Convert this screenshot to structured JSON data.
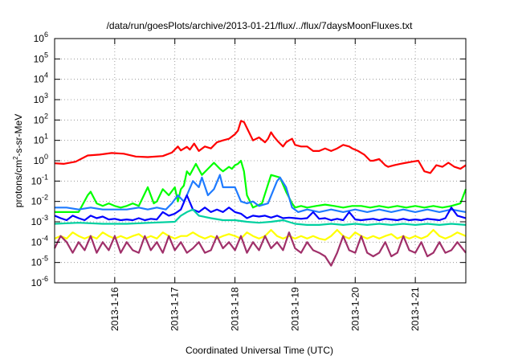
{
  "chart_data": {
    "type": "line",
    "title": "/data/run/goesPlots/archive/2013-01-21/flux/../flux/7daysMoonFluxes.txt",
    "xlabel": "Coordinated Universal Time (UTC)",
    "ylabel_parts": [
      "protons/cm",
      "2",
      "-s-sr-MeV"
    ],
    "y_scale": "log",
    "ylim_exp": [
      -6,
      6
    ],
    "y_tick_exponents": [
      -6,
      -5,
      -4,
      -3,
      -2,
      -1,
      0,
      1,
      2,
      3,
      4,
      5,
      6
    ],
    "x_tick_labels": [
      "2013-1-16",
      "2013-1-17",
      "2013-1-18",
      "2013-1-19",
      "2013-1-20",
      "2013-1-21"
    ],
    "x_tick_days": [
      1,
      2,
      3,
      4,
      5,
      6
    ],
    "xlim_days": [
      0,
      6.84
    ],
    "grid": true,
    "series": [
      {
        "color": "#ff0000",
        "x": [
          0.0,
          0.15,
          0.35,
          0.55,
          0.75,
          0.95,
          1.15,
          1.35,
          1.55,
          1.8,
          1.95,
          2.05,
          2.1,
          2.2,
          2.25,
          2.32,
          2.4,
          2.5,
          2.6,
          2.7,
          2.8,
          2.9,
          3.0,
          3.05,
          3.1,
          3.15,
          3.2,
          3.3,
          3.4,
          3.5,
          3.55,
          3.6,
          3.65,
          3.7,
          3.75,
          3.8,
          3.85,
          3.9,
          3.95,
          4.0,
          4.1,
          4.2,
          4.3,
          4.4,
          4.5,
          4.6,
          4.7,
          4.8,
          4.9,
          4.95,
          5.05,
          5.15,
          5.25,
          5.3,
          5.4,
          5.5,
          5.55,
          5.65,
          5.75,
          5.85,
          5.95,
          6.05,
          6.15,
          6.25,
          6.35,
          6.45,
          6.55,
          6.65,
          6.75,
          6.84
        ],
        "values": [
          0.75,
          0.7,
          0.9,
          1.8,
          2.0,
          2.4,
          2.2,
          1.6,
          1.5,
          1.7,
          2.5,
          5.0,
          3.2,
          4.8,
          3.5,
          7.0,
          3.0,
          5.0,
          4.0,
          8.0,
          10.0,
          12.0,
          20.0,
          30.0,
          90.0,
          80.0,
          40.0,
          10.0,
          14.0,
          8.0,
          12.0,
          25.0,
          15.0,
          10.0,
          7.0,
          5.0,
          8.0,
          10.0,
          12.0,
          6.0,
          5.0,
          5.0,
          3.0,
          3.0,
          4.0,
          3.0,
          4.0,
          6.0,
          5.0,
          4.0,
          3.0,
          2.0,
          1.0,
          1.0,
          1.2,
          0.6,
          0.5,
          0.6,
          0.7,
          0.8,
          0.9,
          1.0,
          0.3,
          0.25,
          0.6,
          0.5,
          0.8,
          0.5,
          0.4,
          0.6
        ]
      },
      {
        "color": "#00ff00",
        "x": [
          0.0,
          0.2,
          0.4,
          0.55,
          0.6,
          0.7,
          0.8,
          0.9,
          1.0,
          1.1,
          1.2,
          1.3,
          1.4,
          1.55,
          1.65,
          1.7,
          1.8,
          1.9,
          2.0,
          2.05,
          2.1,
          2.15,
          2.2,
          2.25,
          2.35,
          2.45,
          2.55,
          2.65,
          2.75,
          2.8,
          2.9,
          2.95,
          3.0,
          3.05,
          3.1,
          3.15,
          3.2,
          3.3,
          3.45,
          3.6,
          3.75,
          3.85,
          3.95,
          4.0,
          4.1,
          4.2,
          4.35,
          4.5,
          4.65,
          4.8,
          4.95,
          5.1,
          5.25,
          5.4,
          5.55,
          5.7,
          5.85,
          6.0,
          6.15,
          6.3,
          6.45,
          6.6,
          6.75,
          6.84
        ],
        "values": [
          0.003,
          0.003,
          0.003,
          0.02,
          0.03,
          0.008,
          0.006,
          0.008,
          0.006,
          0.005,
          0.006,
          0.008,
          0.006,
          0.05,
          0.008,
          0.01,
          0.04,
          0.02,
          0.05,
          0.01,
          0.04,
          0.06,
          0.3,
          0.2,
          0.7,
          0.2,
          0.4,
          0.8,
          0.4,
          0.3,
          0.5,
          0.4,
          0.6,
          0.7,
          1.0,
          0.3,
          0.02,
          0.005,
          0.008,
          0.2,
          0.15,
          0.03,
          0.008,
          0.005,
          0.006,
          0.005,
          0.006,
          0.007,
          0.006,
          0.005,
          0.006,
          0.006,
          0.005,
          0.006,
          0.005,
          0.006,
          0.005,
          0.006,
          0.005,
          0.006,
          0.005,
          0.006,
          0.008,
          0.04
        ]
      },
      {
        "color": "#1f7bff",
        "x": [
          0.0,
          0.2,
          0.4,
          0.6,
          0.8,
          1.0,
          1.2,
          1.4,
          1.55,
          1.7,
          1.85,
          1.95,
          2.05,
          2.15,
          2.2,
          2.3,
          2.4,
          2.45,
          2.55,
          2.65,
          2.75,
          2.8,
          2.9,
          3.0,
          3.1,
          3.2,
          3.3,
          3.4,
          3.55,
          3.7,
          3.75,
          3.85,
          3.95,
          4.05,
          4.2,
          4.4,
          4.6,
          4.8,
          5.0,
          5.2,
          5.4,
          5.6,
          5.8,
          6.0,
          6.2,
          6.4,
          6.6,
          6.84
        ],
        "values": [
          0.005,
          0.005,
          0.004,
          0.005,
          0.004,
          0.004,
          0.004,
          0.005,
          0.004,
          0.005,
          0.004,
          0.008,
          0.02,
          0.01,
          0.02,
          0.1,
          0.05,
          0.15,
          0.02,
          0.04,
          0.2,
          0.05,
          0.05,
          0.05,
          0.01,
          0.008,
          0.01,
          0.006,
          0.008,
          0.1,
          0.15,
          0.05,
          0.005,
          0.003,
          0.004,
          0.003,
          0.004,
          0.003,
          0.004,
          0.003,
          0.004,
          0.003,
          0.004,
          0.003,
          0.004,
          0.003,
          0.004,
          0.003
        ]
      },
      {
        "color": "#0000ff",
        "x": [
          0.0,
          0.1,
          0.2,
          0.3,
          0.4,
          0.5,
          0.6,
          0.7,
          0.8,
          0.9,
          1.0,
          1.1,
          1.2,
          1.3,
          1.4,
          1.5,
          1.6,
          1.7,
          1.8,
          1.9,
          2.0,
          2.1,
          2.2,
          2.3,
          2.4,
          2.5,
          2.6,
          2.7,
          2.8,
          2.9,
          3.0,
          3.1,
          3.2,
          3.3,
          3.4,
          3.5,
          3.6,
          3.7,
          3.8,
          3.9,
          4.0,
          4.1,
          4.2,
          4.3,
          4.4,
          4.5,
          4.6,
          4.7,
          4.8,
          4.9,
          5.0,
          5.1,
          5.2,
          5.3,
          5.4,
          5.5,
          5.6,
          5.7,
          5.8,
          5.9,
          6.0,
          6.1,
          6.2,
          6.3,
          6.4,
          6.5,
          6.6,
          6.7,
          6.84
        ],
        "values": [
          0.002,
          0.0015,
          0.0012,
          0.002,
          0.0015,
          0.0012,
          0.002,
          0.0015,
          0.0018,
          0.0013,
          0.0014,
          0.0012,
          0.0013,
          0.0012,
          0.0015,
          0.0012,
          0.0014,
          0.0013,
          0.003,
          0.002,
          0.0025,
          0.004,
          0.02,
          0.004,
          0.003,
          0.005,
          0.003,
          0.004,
          0.003,
          0.005,
          0.003,
          0.0025,
          0.0015,
          0.002,
          0.0018,
          0.002,
          0.0016,
          0.002,
          0.0015,
          0.0016,
          0.0015,
          0.0014,
          0.0015,
          0.003,
          0.0014,
          0.0015,
          0.0012,
          0.0014,
          0.0012,
          0.003,
          0.0013,
          0.0012,
          0.0013,
          0.0014,
          0.0012,
          0.0014,
          0.0013,
          0.0012,
          0.0014,
          0.0012,
          0.0013,
          0.0012,
          0.0014,
          0.0013,
          0.0012,
          0.0015,
          0.005,
          0.002,
          0.0015
        ]
      },
      {
        "color": "#00d0a0",
        "x": [
          0.0,
          0.4,
          0.8,
          1.2,
          1.6,
          2.0,
          2.1,
          2.2,
          2.3,
          2.4,
          2.6,
          2.8,
          3.0,
          3.2,
          3.4,
          3.6,
          3.8,
          4.0,
          4.2,
          4.4,
          4.6,
          4.8,
          5.0,
          5.2,
          5.4,
          5.6,
          5.8,
          6.0,
          6.2,
          6.4,
          6.6,
          6.84
        ],
        "values": [
          0.0008,
          0.0009,
          0.0008,
          0.0008,
          0.0009,
          0.001,
          0.002,
          0.003,
          0.004,
          0.002,
          0.0015,
          0.0012,
          0.0012,
          0.001,
          0.0009,
          0.001,
          0.0012,
          0.0008,
          0.0007,
          0.0007,
          0.0008,
          0.0007,
          0.0008,
          0.0007,
          0.0008,
          0.0007,
          0.0008,
          0.0007,
          0.0008,
          0.0007,
          0.0008,
          0.0007
        ]
      },
      {
        "color": "#ffff00",
        "x": [
          0.0,
          0.1,
          0.2,
          0.3,
          0.4,
          0.5,
          0.6,
          0.7,
          0.8,
          0.9,
          1.0,
          1.1,
          1.2,
          1.3,
          1.4,
          1.5,
          1.6,
          1.7,
          1.8,
          1.9,
          2.0,
          2.1,
          2.2,
          2.3,
          2.4,
          2.5,
          2.6,
          2.7,
          2.8,
          2.9,
          3.0,
          3.1,
          3.2,
          3.3,
          3.4,
          3.5,
          3.6,
          3.7,
          3.8,
          3.9,
          4.0,
          4.1,
          4.2,
          4.3,
          4.4,
          4.5,
          4.6,
          4.7,
          4.8,
          4.9,
          5.0,
          5.1,
          5.2,
          5.3,
          5.4,
          5.5,
          5.6,
          5.7,
          5.8,
          5.9,
          6.0,
          6.1,
          6.2,
          6.3,
          6.4,
          6.5,
          6.6,
          6.7,
          6.84
        ],
        "values": [
          0.00015,
          0.0002,
          0.00015,
          0.0003,
          0.0002,
          0.00015,
          0.0002,
          0.00015,
          0.0003,
          0.0002,
          0.00015,
          0.0002,
          0.00015,
          0.0002,
          0.00025,
          0.00015,
          0.0002,
          0.00015,
          0.0003,
          0.0002,
          0.00015,
          0.0002,
          0.0002,
          0.0003,
          0.0002,
          0.00015,
          0.0002,
          0.00015,
          0.0002,
          0.00025,
          0.0002,
          0.00015,
          0.0003,
          0.0002,
          0.00015,
          0.0002,
          0.0004,
          0.0002,
          0.00015,
          0.0002,
          0.00015,
          0.0002,
          0.00015,
          0.0002,
          0.00015,
          0.00013,
          0.0002,
          0.0004,
          0.0002,
          0.00015,
          0.0003,
          0.0002,
          0.00015,
          0.0002,
          0.00015,
          0.0002,
          0.00025,
          0.00015,
          0.0002,
          0.00015,
          0.0002,
          0.00015,
          0.0002,
          0.0004,
          0.0002,
          0.00015,
          0.0002,
          0.0003,
          0.0002
        ]
      },
      {
        "color": "#a0306a",
        "x": [
          0.0,
          0.1,
          0.2,
          0.3,
          0.4,
          0.5,
          0.6,
          0.7,
          0.8,
          0.9,
          1.0,
          1.1,
          1.2,
          1.3,
          1.4,
          1.5,
          1.6,
          1.7,
          1.8,
          1.9,
          2.0,
          2.1,
          2.2,
          2.3,
          2.4,
          2.5,
          2.6,
          2.7,
          2.8,
          2.9,
          3.0,
          3.1,
          3.2,
          3.3,
          3.4,
          3.5,
          3.6,
          3.7,
          3.8,
          3.9,
          4.0,
          4.1,
          4.2,
          4.3,
          4.4,
          4.5,
          4.6,
          4.7,
          4.8,
          4.9,
          5.0,
          5.1,
          5.2,
          5.3,
          5.4,
          5.5,
          5.6,
          5.7,
          5.8,
          5.9,
          6.0,
          6.1,
          6.2,
          6.3,
          6.4,
          6.5,
          6.6,
          6.7,
          6.84
        ],
        "values": [
          5e-05,
          0.0002,
          0.0001,
          3e-05,
          0.0001,
          4e-05,
          0.0002,
          3e-05,
          0.0001,
          4e-05,
          0.0002,
          3e-05,
          0.0001,
          4e-05,
          3e-05,
          0.0002,
          4e-05,
          0.0001,
          3e-05,
          0.0002,
          4e-05,
          0.0001,
          3e-05,
          5e-05,
          0.0001,
          3e-05,
          4e-05,
          0.0002,
          5e-05,
          0.0001,
          4e-05,
          0.0002,
          3e-05,
          0.0001,
          4e-05,
          0.0002,
          5e-05,
          0.0001,
          4e-05,
          0.0003,
          5e-05,
          3e-05,
          0.0001,
          4e-05,
          3e-05,
          2e-05,
          7e-06,
          3e-05,
          0.0002,
          4e-05,
          3e-05,
          0.0002,
          3e-05,
          2e-05,
          3e-05,
          0.0001,
          2e-05,
          3e-05,
          0.0002,
          4e-05,
          3e-05,
          0.0001,
          2e-05,
          3e-05,
          0.0001,
          3e-05,
          4e-05,
          0.0001,
          3e-05
        ]
      }
    ]
  }
}
